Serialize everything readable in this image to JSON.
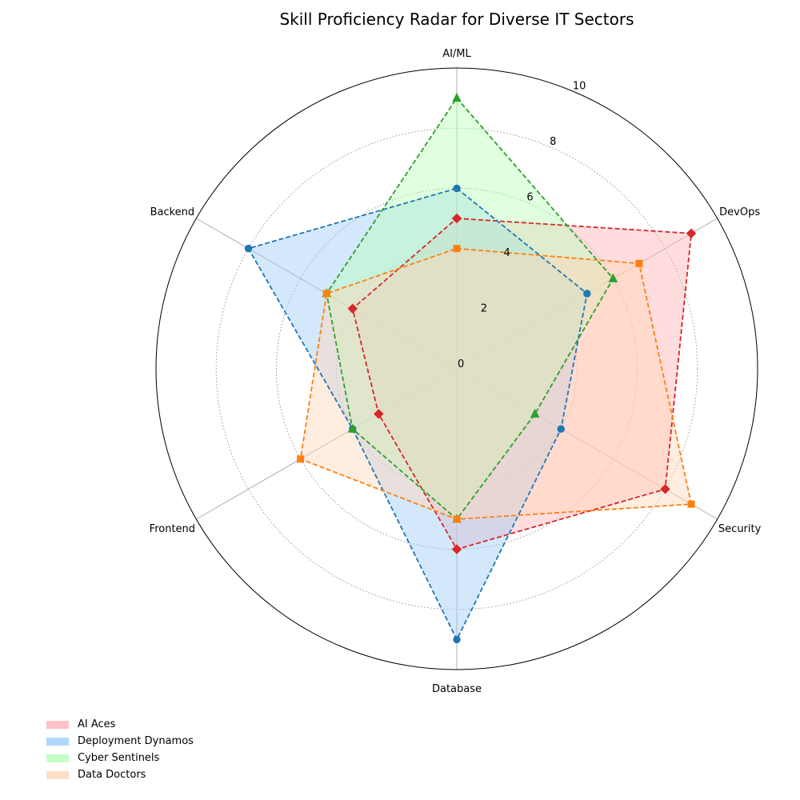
{
  "chart_data": {
    "type": "radar",
    "title": "Skill Proficiency Radar for Diverse IT Sectors",
    "axes": [
      "AI/ML",
      "DevOps",
      "Security",
      "Database",
      "Frontend",
      "Backend"
    ],
    "rlim": [
      0,
      10
    ],
    "rticks": [
      "0",
      "2",
      "4",
      "6",
      "8",
      "10"
    ],
    "grid": true,
    "legend_position": "bottom-left",
    "series": [
      {
        "name": "AI Aces",
        "values": [
          5,
          9,
          8,
          6,
          3,
          4
        ],
        "line_color": "#d62728",
        "fill_color": "#ffb3b8",
        "marker": "diamond"
      },
      {
        "name": "Deployment Dynamos",
        "values": [
          6,
          5,
          4,
          9,
          4,
          8
        ],
        "line_color": "#1f77b4",
        "fill_color": "#a0cdf7",
        "marker": "circle"
      },
      {
        "name": "Cyber Sentinels",
        "values": [
          9,
          6,
          3,
          5,
          4,
          5
        ],
        "line_color": "#2ca02c",
        "fill_color": "#b8ffb8",
        "marker": "triangle"
      },
      {
        "name": "Data Doctors",
        "values": [
          4,
          7,
          9,
          5,
          6,
          5
        ],
        "line_color": "#ff7f0e",
        "fill_color": "#ffd8b8",
        "marker": "square"
      }
    ]
  }
}
